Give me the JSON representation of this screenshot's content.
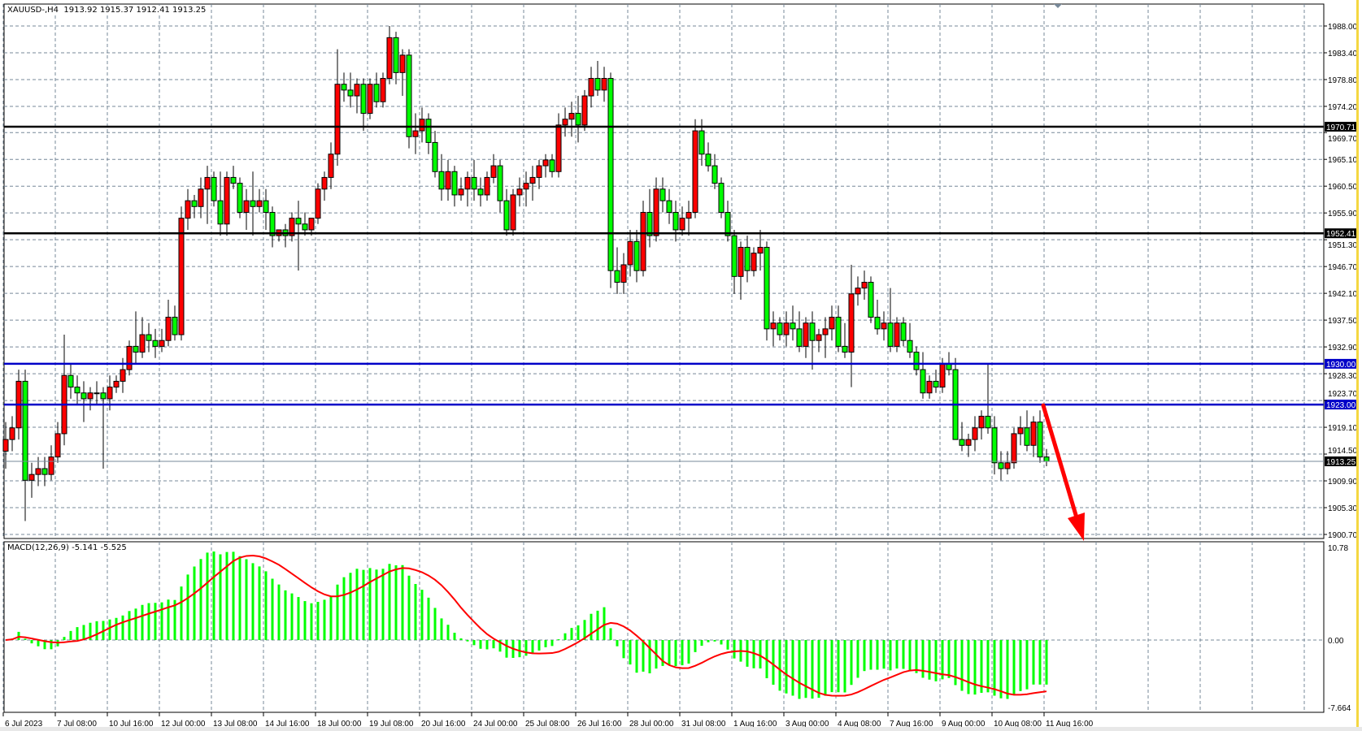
{
  "header": {
    "symbol": "XAUUSD-,H4",
    "ohlc": "1913.92 1915.37 1912.41 1913.25"
  },
  "macd_header": {
    "label": "MACD(12,26,9)",
    "values": "-5.141 -5.525"
  },
  "colors": {
    "bull": "#ff0000",
    "bear": "#00ff00",
    "outline": "#000000",
    "grid": "#778899",
    "support_black": "#000000",
    "support_blue": "#0000c8",
    "macd_hist": "#00ff00",
    "macd_signal": "#ff0000",
    "arrow": "#ff0000"
  },
  "chart_data": {
    "type": "candlestick",
    "symbol": "XAUUSD-",
    "timeframe": "H4",
    "ylim": [
      1900.7,
      1988.0
    ],
    "grid": true,
    "price_ticks": [
      "1988.00",
      "1983.40",
      "1978.80",
      "1974.20",
      "1969.70",
      "1965.10",
      "1960.50",
      "1955.90",
      "1951.30",
      "1946.70",
      "1942.10",
      "1937.50",
      "1932.90",
      "1928.30",
      "1923.70",
      "1919.10",
      "1914.50",
      "1909.90",
      "1905.30",
      "1900.70"
    ],
    "date_ticks": [
      "6 Jul 2023",
      "7 Jul 08:00",
      "10 Jul 16:00",
      "12 Jul 00:00",
      "13 Jul 08:00",
      "14 Jul 16:00",
      "18 Jul 00:00",
      "19 Jul 08:00",
      "20 Jul 16:00",
      "24 Jul 00:00",
      "25 Jul 08:00",
      "26 Jul 16:00",
      "28 Jul 00:00",
      "31 Jul 08:00",
      "1 Aug 16:00",
      "3 Aug 00:00",
      "4 Aug 08:00",
      "7 Aug 16:00",
      "9 Aug 00:00",
      "10 Aug 08:00",
      "11 Aug 16:00"
    ],
    "bars_per_date_tick": 8,
    "horizontal_lines": [
      {
        "price": 1970.71,
        "label": "1970.71",
        "style": "black"
      },
      {
        "price": 1952.41,
        "label": "1952.41",
        "style": "black"
      },
      {
        "price": 1930.0,
        "label": "1930.00",
        "style": "blue"
      },
      {
        "price": 1923.0,
        "label": "1923.00",
        "style": "blue"
      }
    ],
    "current_price": {
      "price": 1913.25,
      "label": "1913.25"
    },
    "arrow": {
      "direction": "down",
      "from_price": 1923.0,
      "to_price": 1900.7
    },
    "candles_ohlc": [
      [
        1915,
        1920,
        1912,
        1917
      ],
      [
        1917,
        1921,
        1915,
        1919
      ],
      [
        1919,
        1929,
        1917,
        1927
      ],
      [
        1927,
        1929,
        1903,
        1910
      ],
      [
        1910,
        1913,
        1907,
        1911
      ],
      [
        1911,
        1914,
        1909,
        1912
      ],
      [
        1912,
        1914,
        1909,
        1911
      ],
      [
        1911,
        1916,
        1910,
        1914
      ],
      [
        1914,
        1920,
        1913,
        1918
      ],
      [
        1918,
        1935,
        1916,
        1928
      ],
      [
        1928,
        1930,
        1924,
        1926
      ],
      [
        1926,
        1928,
        1923,
        1925
      ],
      [
        1925,
        1927,
        1920,
        1924
      ],
      [
        1924,
        1926,
        1922,
        1925
      ],
      [
        1925,
        1927,
        1923,
        1925
      ],
      [
        1925,
        1926,
        1912,
        1924
      ],
      [
        1924,
        1928,
        1922,
        1926
      ],
      [
        1926,
        1928,
        1925,
        1927
      ],
      [
        1927,
        1931,
        1925,
        1929
      ],
      [
        1929,
        1934,
        1928,
        1933
      ],
      [
        1933,
        1939,
        1930,
        1932
      ],
      [
        1932,
        1938,
        1931,
        1935
      ],
      [
        1935,
        1937,
        1932,
        1934
      ],
      [
        1934,
        1936,
        1931,
        1933
      ],
      [
        1933,
        1936,
        1932,
        1934
      ],
      [
        1934,
        1941,
        1933,
        1938
      ],
      [
        1938,
        1940,
        1934,
        1935
      ],
      [
        1935,
        1957,
        1934,
        1955
      ],
      [
        1955,
        1960,
        1953,
        1958
      ],
      [
        1958,
        1959,
        1955,
        1957
      ],
      [
        1957,
        1962,
        1955,
        1960
      ],
      [
        1960,
        1964,
        1954,
        1962
      ],
      [
        1962,
        1963,
        1957,
        1958
      ],
      [
        1958,
        1963,
        1952,
        1954
      ],
      [
        1954,
        1963,
        1952,
        1962
      ],
      [
        1962,
        1964,
        1960,
        1961
      ],
      [
        1961,
        1962,
        1955,
        1956
      ],
      [
        1956,
        1960,
        1953,
        1958
      ],
      [
        1958,
        1963,
        1952,
        1957
      ],
      [
        1957,
        1960,
        1956,
        1958
      ],
      [
        1958,
        1960,
        1953,
        1956
      ],
      [
        1956,
        1957,
        1950,
        1952
      ],
      [
        1952,
        1953,
        1951,
        1953
      ],
      [
        1953,
        1954,
        1950,
        1952
      ],
      [
        1952,
        1956,
        1951,
        1955
      ],
      [
        1955,
        1958,
        1946,
        1954
      ],
      [
        1954,
        1956,
        1952,
        1953
      ],
      [
        1953,
        1955,
        1952,
        1955
      ],
      [
        1955,
        1961,
        1954,
        1960
      ],
      [
        1960,
        1963,
        1958,
        1962
      ],
      [
        1962,
        1968,
        1960,
        1966
      ],
      [
        1966,
        1984,
        1964,
        1978
      ],
      [
        1978,
        1980,
        1975,
        1977
      ],
      [
        1977,
        1980,
        1974,
        1976
      ],
      [
        1976,
        1979,
        1973,
        1978
      ],
      [
        1978,
        1979,
        1970,
        1973
      ],
      [
        1973,
        1979,
        1972,
        1978
      ],
      [
        1978,
        1980,
        1974,
        1975
      ],
      [
        1975,
        1980,
        1974,
        1979
      ],
      [
        1979,
        1988,
        1978,
        1986
      ],
      [
        1986,
        1987,
        1978,
        1980
      ],
      [
        1980,
        1984,
        1976,
        1983
      ],
      [
        1983,
        1984,
        1967,
        1969
      ],
      [
        1969,
        1973,
        1966,
        1970
      ],
      [
        1970,
        1974,
        1968,
        1972
      ],
      [
        1972,
        1973,
        1966,
        1968
      ],
      [
        1968,
        1970,
        1962,
        1963
      ],
      [
        1963,
        1966,
        1958,
        1960
      ],
      [
        1960,
        1965,
        1958,
        1963
      ],
      [
        1963,
        1964,
        1957,
        1959
      ],
      [
        1959,
        1962,
        1958,
        1960
      ],
      [
        1960,
        1963,
        1957,
        1962
      ],
      [
        1962,
        1965,
        1958,
        1960
      ],
      [
        1960,
        1962,
        1957,
        1959
      ],
      [
        1959,
        1963,
        1958,
        1962
      ],
      [
        1962,
        1966,
        1961,
        1964
      ],
      [
        1964,
        1965,
        1956,
        1958
      ],
      [
        1958,
        1960,
        1952,
        1953
      ],
      [
        1953,
        1960,
        1952,
        1959
      ],
      [
        1959,
        1962,
        1957,
        1960
      ],
      [
        1960,
        1963,
        1957,
        1961
      ],
      [
        1961,
        1964,
        1958,
        1962
      ],
      [
        1962,
        1965,
        1960,
        1964
      ],
      [
        1964,
        1966,
        1962,
        1965
      ],
      [
        1965,
        1966,
        1962,
        1963
      ],
      [
        1963,
        1973,
        1962,
        1971
      ],
      [
        1971,
        1974,
        1969,
        1972
      ],
      [
        1972,
        1975,
        1969,
        1973
      ],
      [
        1973,
        1976,
        1968,
        1971
      ],
      [
        1971,
        1977,
        1970,
        1976
      ],
      [
        1976,
        1981,
        1974,
        1979
      ],
      [
        1979,
        1982,
        1976,
        1977
      ],
      [
        1977,
        1981,
        1975,
        1979
      ],
      [
        1979,
        1980,
        1943,
        1946
      ],
      [
        1946,
        1950,
        1942,
        1944
      ],
      [
        1944,
        1949,
        1942,
        1947
      ],
      [
        1947,
        1953,
        1945,
        1951
      ],
      [
        1951,
        1953,
        1944,
        1946
      ],
      [
        1946,
        1958,
        1945,
        1956
      ],
      [
        1956,
        1960,
        1950,
        1952
      ],
      [
        1952,
        1962,
        1951,
        1960
      ],
      [
        1960,
        1962,
        1956,
        1958
      ],
      [
        1958,
        1960,
        1954,
        1956
      ],
      [
        1956,
        1958,
        1951,
        1953
      ],
      [
        1953,
        1957,
        1952,
        1955
      ],
      [
        1955,
        1958,
        1952,
        1956
      ],
      [
        1956,
        1972,
        1955,
        1970
      ],
      [
        1970,
        1972,
        1964,
        1966
      ],
      [
        1966,
        1968,
        1963,
        1964
      ],
      [
        1964,
        1966,
        1960,
        1961
      ],
      [
        1961,
        1962,
        1955,
        1956
      ],
      [
        1956,
        1958,
        1951,
        1952
      ],
      [
        1952,
        1953,
        1942,
        1945
      ],
      [
        1945,
        1951,
        1941,
        1950
      ],
      [
        1950,
        1952,
        1944,
        1946
      ],
      [
        1946,
        1950,
        1945,
        1949
      ],
      [
        1949,
        1953,
        1946,
        1950
      ],
      [
        1950,
        1951,
        1934,
        1936
      ],
      [
        1936,
        1939,
        1933,
        1937
      ],
      [
        1937,
        1938,
        1934,
        1935
      ],
      [
        1935,
        1939,
        1933,
        1937
      ],
      [
        1937,
        1940,
        1934,
        1936
      ],
      [
        1936,
        1939,
        1932,
        1933
      ],
      [
        1933,
        1938,
        1931,
        1937
      ],
      [
        1937,
        1939,
        1929,
        1934
      ],
      [
        1934,
        1936,
        1932,
        1935
      ],
      [
        1935,
        1938,
        1931,
        1936
      ],
      [
        1936,
        1940,
        1934,
        1938
      ],
      [
        1938,
        1940,
        1932,
        1933
      ],
      [
        1933,
        1937,
        1931,
        1932
      ],
      [
        1932,
        1947,
        1926,
        1942
      ],
      [
        1942,
        1945,
        1940,
        1943
      ],
      [
        1943,
        1946,
        1941,
        1944
      ],
      [
        1944,
        1945,
        1937,
        1938
      ],
      [
        1938,
        1941,
        1935,
        1936
      ],
      [
        1936,
        1939,
        1934,
        1937
      ],
      [
        1937,
        1943,
        1932,
        1933
      ],
      [
        1933,
        1938,
        1932,
        1937
      ],
      [
        1937,
        1938,
        1933,
        1934
      ],
      [
        1934,
        1937,
        1931,
        1932
      ],
      [
        1932,
        1933,
        1928,
        1929
      ],
      [
        1929,
        1932,
        1924,
        1925
      ],
      [
        1925,
        1928,
        1924,
        1927
      ],
      [
        1927,
        1929,
        1925,
        1926
      ],
      [
        1926,
        1931,
        1925,
        1930
      ],
      [
        1930,
        1932,
        1928,
        1929
      ],
      [
        1929,
        1931,
        1917,
        1917
      ],
      [
        1917,
        1920,
        1915,
        1916
      ],
      [
        1916,
        1918,
        1914,
        1917
      ],
      [
        1917,
        1921,
        1915,
        1919
      ],
      [
        1919,
        1922,
        1917,
        1921
      ],
      [
        1921,
        1930,
        1918,
        1919
      ],
      [
        1919,
        1921,
        1911,
        1913
      ],
      [
        1913,
        1915,
        1910,
        1912
      ],
      [
        1912,
        1915,
        1911,
        1913
      ],
      [
        1913,
        1919,
        1912,
        1918
      ],
      [
        1918,
        1921,
        1916,
        1919
      ],
      [
        1919,
        1922,
        1915,
        1916
      ],
      [
        1916,
        1921,
        1914,
        1920
      ],
      [
        1920,
        1922,
        1913,
        1914
      ],
      [
        1914,
        1915.37,
        1912.41,
        1913.25
      ]
    ],
    "macd": {
      "fast": 12,
      "slow": 26,
      "signal": 9,
      "ylim": [
        -7.664,
        10.78
      ],
      "ticks": [
        "10.78",
        "0.00",
        "-7.664"
      ],
      "last_main": -5.141,
      "last_signal": -5.525
    }
  }
}
